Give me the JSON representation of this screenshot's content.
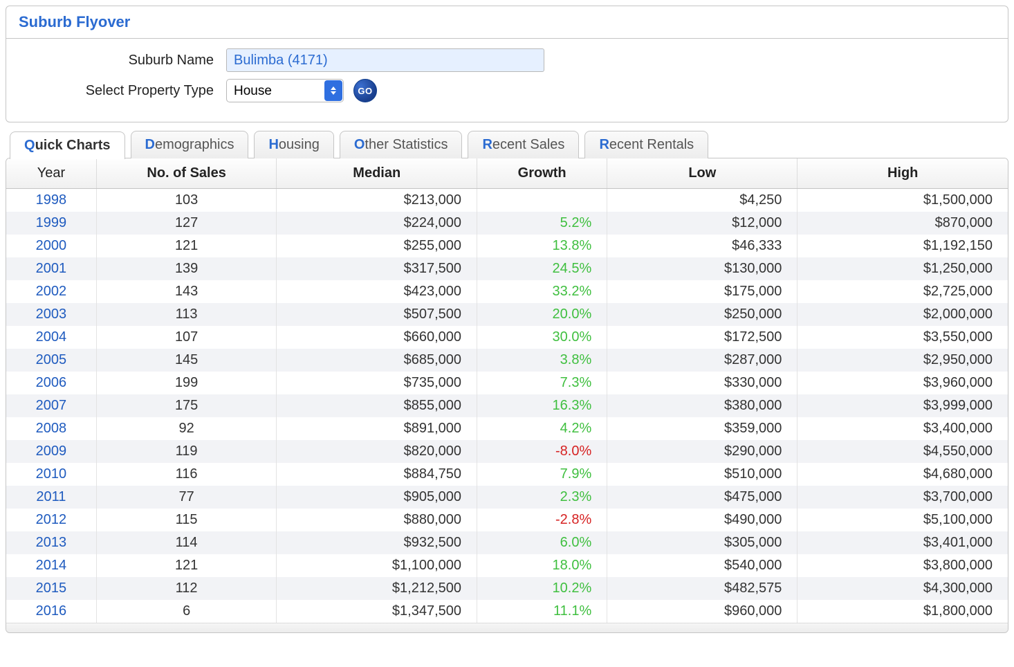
{
  "header": {
    "title": "Suburb Flyover"
  },
  "form": {
    "suburb_label": "Suburb Name",
    "suburb_value": "Bulimba (4171)",
    "property_label": "Select Property Type",
    "property_value": "House",
    "go_label": "GO"
  },
  "tabs": [
    {
      "label": "Quick Charts",
      "active": true
    },
    {
      "label": "Demographics",
      "active": false
    },
    {
      "label": "Housing",
      "active": false
    },
    {
      "label": "Other Statistics",
      "active": false
    },
    {
      "label": "Recent Sales",
      "active": false
    },
    {
      "label": "Recent Rentals",
      "active": false
    }
  ],
  "table": {
    "columns": [
      "Year",
      "No. of Sales",
      "Median",
      "Growth",
      "Low",
      "High"
    ],
    "column_align": [
      "center",
      "center",
      "right",
      "right",
      "right",
      "right"
    ],
    "column_classes": [
      "col-year",
      "col-sales",
      "col-median",
      "col-growth",
      "col-low",
      "col-high"
    ],
    "rows": [
      {
        "year": "1998",
        "sales": "103",
        "median": "$213,000",
        "growth": "",
        "growth_sign": 0,
        "low": "$4,250",
        "high": "$1,500,000"
      },
      {
        "year": "1999",
        "sales": "127",
        "median": "$224,000",
        "growth": "5.2%",
        "growth_sign": 1,
        "low": "$12,000",
        "high": "$870,000"
      },
      {
        "year": "2000",
        "sales": "121",
        "median": "$255,000",
        "growth": "13.8%",
        "growth_sign": 1,
        "low": "$46,333",
        "high": "$1,192,150"
      },
      {
        "year": "2001",
        "sales": "139",
        "median": "$317,500",
        "growth": "24.5%",
        "growth_sign": 1,
        "low": "$130,000",
        "high": "$1,250,000"
      },
      {
        "year": "2002",
        "sales": "143",
        "median": "$423,000",
        "growth": "33.2%",
        "growth_sign": 1,
        "low": "$175,000",
        "high": "$2,725,000"
      },
      {
        "year": "2003",
        "sales": "113",
        "median": "$507,500",
        "growth": "20.0%",
        "growth_sign": 1,
        "low": "$250,000",
        "high": "$2,000,000"
      },
      {
        "year": "2004",
        "sales": "107",
        "median": "$660,000",
        "growth": "30.0%",
        "growth_sign": 1,
        "low": "$172,500",
        "high": "$3,550,000"
      },
      {
        "year": "2005",
        "sales": "145",
        "median": "$685,000",
        "growth": "3.8%",
        "growth_sign": 1,
        "low": "$287,000",
        "high": "$2,950,000"
      },
      {
        "year": "2006",
        "sales": "199",
        "median": "$735,000",
        "growth": "7.3%",
        "growth_sign": 1,
        "low": "$330,000",
        "high": "$3,960,000"
      },
      {
        "year": "2007",
        "sales": "175",
        "median": "$855,000",
        "growth": "16.3%",
        "growth_sign": 1,
        "low": "$380,000",
        "high": "$3,999,000"
      },
      {
        "year": "2008",
        "sales": "92",
        "median": "$891,000",
        "growth": "4.2%",
        "growth_sign": 1,
        "low": "$359,000",
        "high": "$3,400,000"
      },
      {
        "year": "2009",
        "sales": "119",
        "median": "$820,000",
        "growth": "-8.0%",
        "growth_sign": -1,
        "low": "$290,000",
        "high": "$4,550,000"
      },
      {
        "year": "2010",
        "sales": "116",
        "median": "$884,750",
        "growth": "7.9%",
        "growth_sign": 1,
        "low": "$510,000",
        "high": "$4,680,000"
      },
      {
        "year": "2011",
        "sales": "77",
        "median": "$905,000",
        "growth": "2.3%",
        "growth_sign": 1,
        "low": "$475,000",
        "high": "$3,700,000"
      },
      {
        "year": "2012",
        "sales": "115",
        "median": "$880,000",
        "growth": "-2.8%",
        "growth_sign": -1,
        "low": "$490,000",
        "high": "$5,100,000"
      },
      {
        "year": "2013",
        "sales": "114",
        "median": "$932,500",
        "growth": "6.0%",
        "growth_sign": 1,
        "low": "$305,000",
        "high": "$3,401,000"
      },
      {
        "year": "2014",
        "sales": "121",
        "median": "$1,100,000",
        "growth": "18.0%",
        "growth_sign": 1,
        "low": "$540,000",
        "high": "$3,800,000"
      },
      {
        "year": "2015",
        "sales": "112",
        "median": "$1,212,500",
        "growth": "10.2%",
        "growth_sign": 1,
        "low": "$482,575",
        "high": "$4,300,000"
      },
      {
        "year": "2016",
        "sales": "6",
        "median": "$1,347,500",
        "growth": "11.1%",
        "growth_sign": 1,
        "low": "$960,000",
        "high": "$1,800,000"
      }
    ],
    "colors": {
      "header_bg_top": "#fefefe",
      "header_bg_bottom": "#f0f0f0",
      "row_even_bg": "#f2f3f6",
      "row_odd_bg": "#ffffff",
      "year_link": "#1f5bbf",
      "growth_positive": "#3fbf3f",
      "growth_negative": "#d62222",
      "border": "#c5c5c5"
    }
  }
}
